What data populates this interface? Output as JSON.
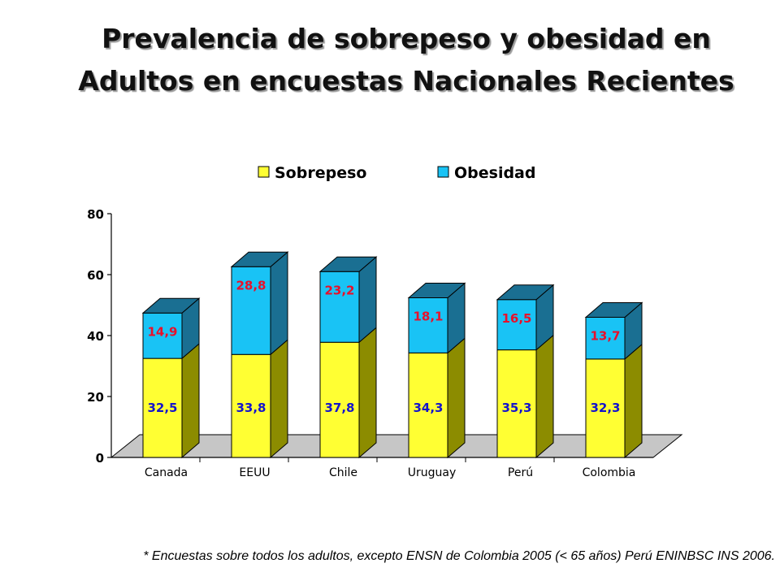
{
  "title": {
    "line1": "Prevalencia de sobrepeso y obesidad en",
    "line2": "Adultos en encuestas Nacionales Recientes"
  },
  "footnote": "* Encuestas sobre todos los adultos, excepto ENSN de Colombia 2005 (< 65 años) Perú ENINBSC INS 2006.",
  "chart_data": {
    "type": "bar",
    "stacked": true,
    "three_d": true,
    "title": "",
    "xlabel": "",
    "ylabel": "",
    "ylim": [
      0,
      80
    ],
    "yticks": [
      "0",
      "20",
      "40",
      "60",
      "80"
    ],
    "categories": [
      "Canada",
      "EEUU",
      "Chile",
      "Uruguay",
      "Perú",
      "Colombia"
    ],
    "series": [
      {
        "name": "Sobrepeso",
        "values": [
          32.5,
          33.8,
          37.8,
          34.3,
          35.3,
          32.3
        ],
        "labels": [
          "32,5",
          "33,8",
          "37,8",
          "34,3",
          "35,3",
          "32,3"
        ],
        "color": "#FFFF33",
        "side_color": "#8C8C00",
        "label_color": "#1414CC"
      },
      {
        "name": "Obesidad",
        "values": [
          14.9,
          28.8,
          23.2,
          18.1,
          16.5,
          13.7
        ],
        "labels": [
          "14,9",
          "28,8",
          "23,2",
          "18,1",
          "16,5",
          "13,7"
        ],
        "color": "#19C3F5",
        "side_color": "#1A6F92",
        "label_color": "#E8102A"
      }
    ],
    "legend": {
      "position": "top"
    },
    "floor_color": "#C6C6C6",
    "grid": false
  }
}
